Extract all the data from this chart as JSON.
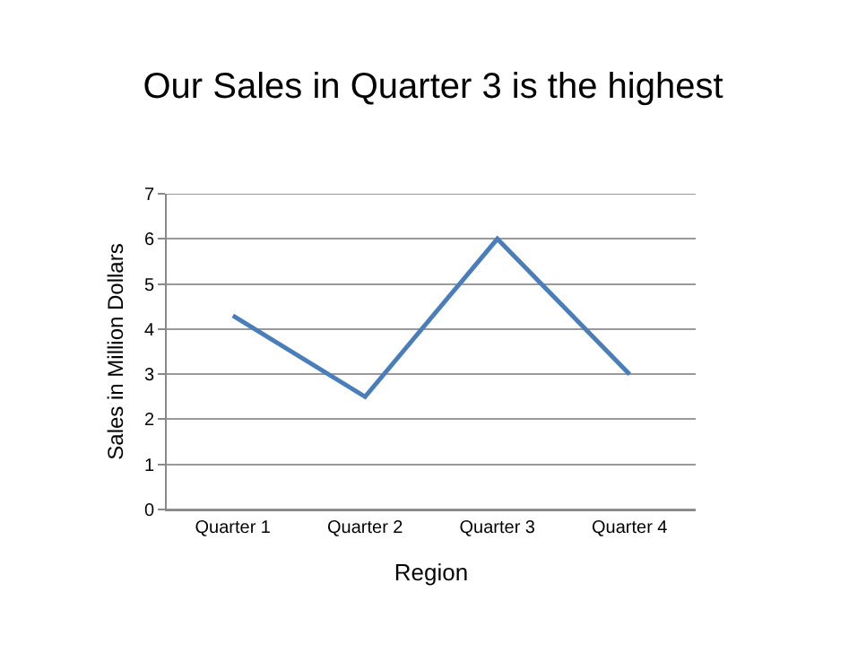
{
  "chart_data": {
    "type": "line",
    "title": "Our Sales in Quarter 3 is the highest",
    "xlabel": "Region",
    "ylabel": "Sales in Million Dollars",
    "categories": [
      "Quarter 1",
      "Quarter 2",
      "Quarter 3",
      "Quarter 4"
    ],
    "series": [
      {
        "color": "#4a7ebb",
        "values": [
          4.3,
          2.5,
          6.0,
          3.0
        ]
      }
    ],
    "ylim": [
      0,
      7
    ],
    "yticks": [
      0,
      1,
      2,
      3,
      4,
      5,
      6,
      7
    ],
    "grid": "y",
    "marker": "none",
    "line_style": "solid"
  }
}
